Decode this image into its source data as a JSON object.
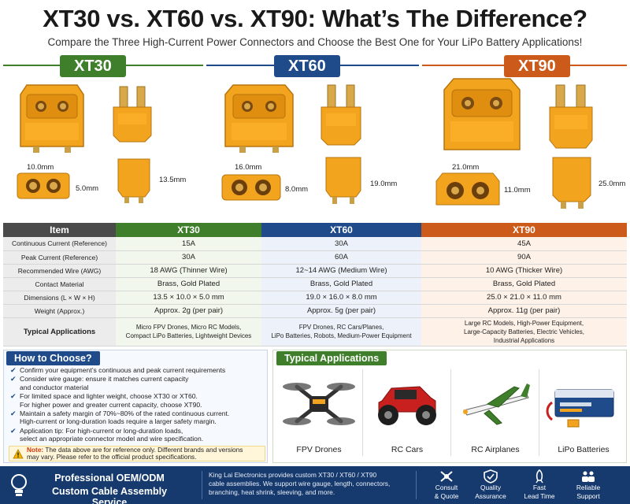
{
  "title": "XT30 vs. XT60 vs. XT90: What’s The Difference?",
  "subtitle": "Compare the Three High-Current Power Connectors and Choose the Best One for Your LiPo Battery Applications!",
  "connectors": [
    {
      "name": "XT30",
      "width": "10.0mm",
      "height": "5.0mm",
      "length": "13.5mm",
      "color": "#3f7f2b"
    },
    {
      "name": "XT60",
      "width": "16.0mm",
      "height": "8.0mm",
      "length": "19.0mm",
      "color": "#1f4b8a"
    },
    {
      "name": "XT90",
      "width": "21.0mm",
      "height": "11.0mm",
      "length": "25.0mm",
      "color": "#cc5a1a"
    }
  ],
  "table": {
    "headers": [
      "Item",
      "XT30",
      "XT60",
      "XT90"
    ],
    "rows": [
      {
        "label": "Continuous Current (Reference)",
        "xt30": "15A",
        "xt60": "30A",
        "xt90": "45A"
      },
      {
        "label": "Peak Current (Reference)",
        "xt30": "30A",
        "xt60": "60A",
        "xt90": "90A"
      },
      {
        "label": "Recommended Wire (AWG)",
        "xt30": "18 AWG (Thinner Wire)",
        "xt60": "12~14 AWG (Medium Wire)",
        "xt90": "10 AWG (Thicker Wire)"
      },
      {
        "label": "Contact Material",
        "xt30": "Brass, Gold Plated",
        "xt60": "Brass, Gold Plated",
        "xt90": "Brass, Gold Plated"
      },
      {
        "label": "Dimensions (L × W × H)",
        "xt30": "13.5 × 10.0 × 5.0 mm",
        "xt60": "19.0 × 16.0 × 8.0 mm",
        "xt90": "25.0 × 21.0 × 11.0 mm"
      },
      {
        "label": "Weight (Approx.)",
        "xt30": "Approx. 2g (per pair)",
        "xt60": "Approx. 5g (per pair)",
        "xt90": "Approx. 11g (per pair)"
      }
    ],
    "apps": {
      "label": "Typical Applications",
      "xt30": [
        "Micro FPV Drones, Micro RC Models,",
        "Compact LiPo Batteries, Lightweight Devices"
      ],
      "xt60": [
        "FPV Drones, RC Cars/Planes,",
        "LiPo Batteries, Robots, Medium-Power Equipment"
      ],
      "xt90": [
        "Large RC Models, High-Power Equipment,",
        "Large-Capacity Batteries, Electric Vehicles,",
        "Industrial Applications"
      ]
    }
  },
  "how_to_choose": {
    "title": "How to Choose?",
    "items": [
      {
        "lines": [
          "Confirm your equipment’s continuous and peak current requirements"
        ]
      },
      {
        "lines": [
          "Consider wire gauge: ensure it matches current capacity",
          "and conductor material"
        ]
      },
      {
        "lines": [
          "For limited space and lighter weight, choose XT30 or XT60.",
          "For higher power and greater current capacity, choose XT90."
        ]
      },
      {
        "lines": [
          "Maintain a safety margin of 70%~80% of the rated continuous current.",
          "High-current or long-duration loads require a larger safety margin."
        ]
      },
      {
        "lines": [
          "Application tip: For high-current or long-duration loads,",
          "select an appropriate connector model and wire specification."
        ]
      }
    ],
    "note_label": "Note:",
    "note_line1": "The data above are for reference only. Different brands and versions",
    "note_line2": "may vary. Please refer to the official product specifications."
  },
  "typical_applications": {
    "title": "Typical Applications",
    "items": [
      {
        "label": "FPV Drones",
        "icon": "drone-icon"
      },
      {
        "label": "RC Cars",
        "icon": "rc-car-icon"
      },
      {
        "label": "RC Airplanes",
        "icon": "airplane-icon"
      },
      {
        "label": "LiPo Batteries",
        "icon": "battery-icon"
      }
    ]
  },
  "footer": {
    "title_line1": "Professional OEM/ODM",
    "title_line2": "Custom Cable Assembly Service",
    "desc_lines": [
      "King Lai Electronics provides custom XT30 / XT60 / XT90",
      "cable assemblies. We support wire gauge, length, connectors,",
      "branching, heat shrink, sleeving, and more."
    ],
    "features": [
      {
        "line1": "Consult",
        "line2": "& Quote",
        "icon": "consult-icon"
      },
      {
        "line1": "Quality",
        "line2": "Assurance",
        "icon": "shield-icon"
      },
      {
        "line1": "Fast",
        "line2": "Lead Time",
        "icon": "rocket-icon"
      },
      {
        "line1": "Reliable",
        "line2": "Support",
        "icon": "team-icon"
      }
    ]
  },
  "colors": {
    "xt30": "#3f7f2b",
    "xt60": "#1f4b8a",
    "xt90": "#cc5a1a",
    "connector": "#f0a020",
    "footer": "#163a6e"
  }
}
